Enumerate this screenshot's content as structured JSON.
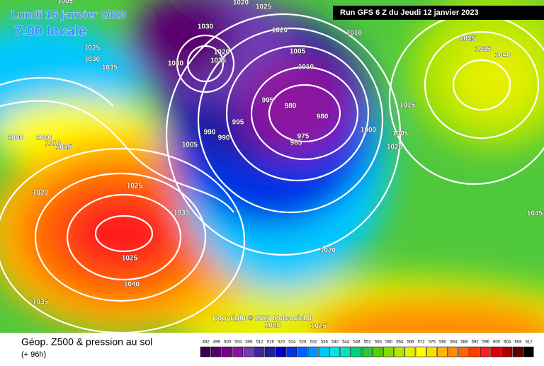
{
  "header": {
    "date": "Lundi 16 janvier 2023",
    "time": "7:00 locale",
    "run": "Run GFS 6 Z du Jeudi 12 janvier 2023"
  },
  "copyright": "Copyright © 2023 Meteociel.fr",
  "footer": {
    "title": "Géop. Z500 & pression au sol",
    "lead": "(+ 96h)"
  },
  "isobar_labels": [
    "1020",
    "1025",
    "1005",
    "1020",
    "1010",
    "1030",
    "1035",
    "1025",
    "1030",
    "1035",
    "1040",
    "1005",
    "1010",
    "995",
    "980",
    "980",
    "975",
    "985",
    "990",
    "990",
    "995",
    "1005",
    "1000",
    "1000",
    "1000",
    "1010",
    "1015",
    "1020",
    "1025",
    "1030",
    "1025",
    "1040",
    "1035",
    "1020",
    "1005",
    "1020",
    "1015",
    "1025",
    "1035",
    "1040",
    "1045",
    "1020",
    "1025",
    "1020"
  ],
  "scale": {
    "values": [
      492,
      496,
      500,
      504,
      508,
      512,
      516,
      520,
      524,
      528,
      532,
      536,
      540,
      544,
      548,
      552,
      556,
      560,
      564,
      568,
      572,
      576,
      580,
      584,
      588,
      592,
      596,
      600,
      604,
      608,
      612
    ],
    "colors": [
      "#3c0050",
      "#5a006e",
      "#78008c",
      "#8c14a0",
      "#6e3cb4",
      "#3c2896",
      "#1e1ea0",
      "#0000c8",
      "#0032e6",
      "#0064ff",
      "#0096ff",
      "#00c8ff",
      "#00e6e6",
      "#00e6b4",
      "#00d278",
      "#28c83c",
      "#50d200",
      "#82dc00",
      "#b4e600",
      "#e6f000",
      "#ffff00",
      "#ffdc00",
      "#ffb400",
      "#ff8c00",
      "#ff6400",
      "#ff3c00",
      "#ff1e1e",
      "#dc0000",
      "#aa0000",
      "#640000",
      "#000000"
    ]
  }
}
